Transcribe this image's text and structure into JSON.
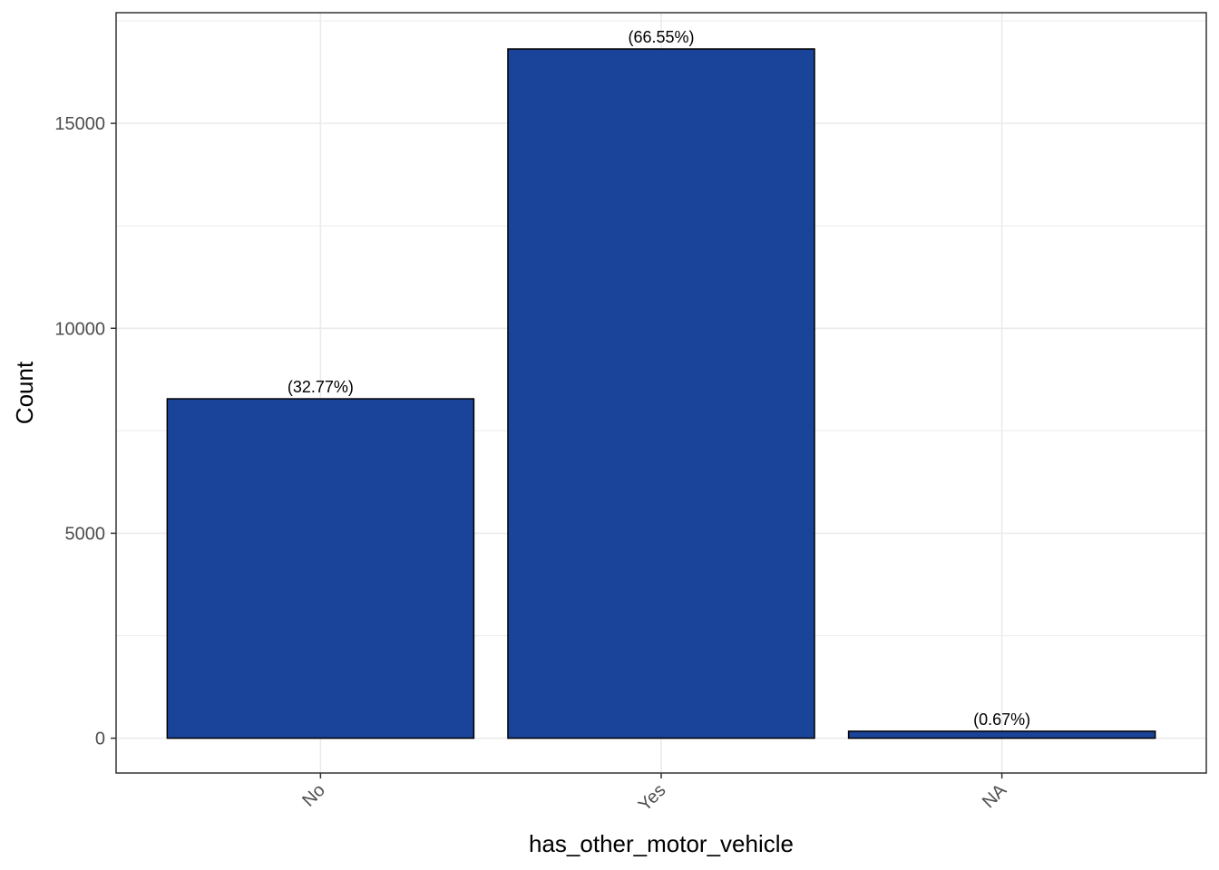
{
  "chart_data": {
    "type": "bar",
    "title": "",
    "xlabel": "has_other_motor_vehicle",
    "ylabel": "Count",
    "categories": [
      "No",
      "Yes",
      "NA"
    ],
    "values": [
      8280,
      16815,
      170
    ],
    "data_labels": [
      "(32.77%)",
      "(66.55%)",
      "(0.67%)"
    ],
    "yticks": [
      0,
      5000,
      10000,
      15000
    ],
    "ylim": [
      -850,
      17700
    ],
    "grid": true,
    "x_tick_rotation": "45 degrees",
    "colors": {
      "bar_fill": "#1a4499",
      "bar_stroke": "#000000",
      "panel_border": "#333333",
      "grid": "#ebebeb",
      "tick_text": "#4d4d4d"
    }
  }
}
